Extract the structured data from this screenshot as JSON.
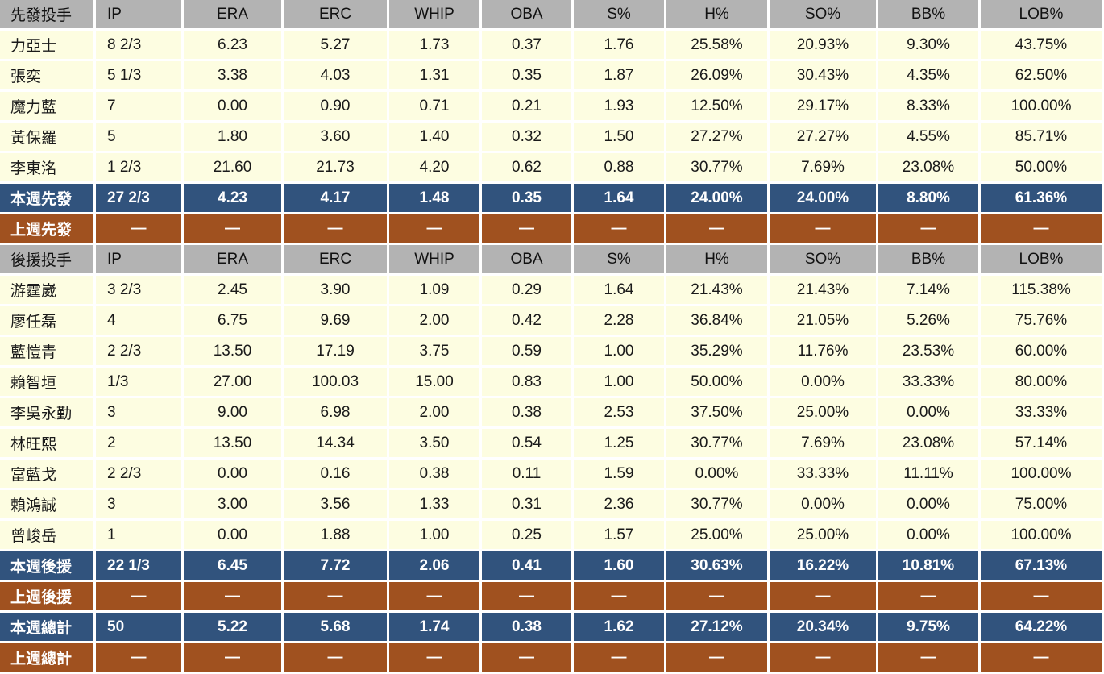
{
  "colors": {
    "header_bg": "#b3b3b3",
    "player_row_bg": "#fdfde1",
    "this_week_row_bg": "#31537d",
    "last_week_row_bg": "#a0511f",
    "grid_border": "#ffffff",
    "text": "#1a1a1a",
    "inverse_text": "#ffffff"
  },
  "chart_data": {
    "type": "table",
    "stat_columns": [
      "IP",
      "ERA",
      "ERC",
      "WHIP",
      "OBA",
      "S%",
      "H%",
      "SO%",
      "BB%",
      "LOB%"
    ],
    "rows": [
      {
        "kind": "header",
        "label": "先發投手"
      },
      {
        "kind": "player",
        "label": "力亞士",
        "values": [
          "8 2/3",
          "6.23",
          "5.27",
          "1.73",
          "0.37",
          "1.76",
          "25.58%",
          "20.93%",
          "9.30%",
          "43.75%"
        ]
      },
      {
        "kind": "player",
        "label": "張奕",
        "values": [
          "5 1/3",
          "3.38",
          "4.03",
          "1.31",
          "0.35",
          "1.87",
          "26.09%",
          "30.43%",
          "4.35%",
          "62.50%"
        ]
      },
      {
        "kind": "player",
        "label": "魔力藍",
        "values": [
          "7",
          "0.00",
          "0.90",
          "0.71",
          "0.21",
          "1.93",
          "12.50%",
          "29.17%",
          "8.33%",
          "100.00%"
        ]
      },
      {
        "kind": "player",
        "label": "黃保羅",
        "values": [
          "5",
          "1.80",
          "3.60",
          "1.40",
          "0.32",
          "1.50",
          "27.27%",
          "27.27%",
          "4.55%",
          "85.71%"
        ]
      },
      {
        "kind": "player",
        "label": "李東洺",
        "values": [
          "1 2/3",
          "21.60",
          "21.73",
          "4.20",
          "0.62",
          "0.88",
          "30.77%",
          "7.69%",
          "23.08%",
          "50.00%"
        ]
      },
      {
        "kind": "week_total",
        "label": "本週先發",
        "values": [
          "27 2/3",
          "4.23",
          "4.17",
          "1.48",
          "0.35",
          "1.64",
          "24.00%",
          "24.00%",
          "8.80%",
          "61.36%"
        ]
      },
      {
        "kind": "lastweek_total",
        "label": "上週先發",
        "values": [
          "—",
          "—",
          "—",
          "—",
          "—",
          "—",
          "—",
          "—",
          "—",
          "—"
        ]
      },
      {
        "kind": "header",
        "label": "後援投手"
      },
      {
        "kind": "player",
        "label": "游霆崴",
        "values": [
          "3 2/3",
          "2.45",
          "3.90",
          "1.09",
          "0.29",
          "1.64",
          "21.43%",
          "21.43%",
          "7.14%",
          "115.38%"
        ]
      },
      {
        "kind": "player",
        "label": "廖任磊",
        "values": [
          "4",
          "6.75",
          "9.69",
          "2.00",
          "0.42",
          "2.28",
          "36.84%",
          "21.05%",
          "5.26%",
          "75.76%"
        ]
      },
      {
        "kind": "player",
        "label": "藍愷青",
        "values": [
          "2 2/3",
          "13.50",
          "17.19",
          "3.75",
          "0.59",
          "1.00",
          "35.29%",
          "11.76%",
          "23.53%",
          "60.00%"
        ]
      },
      {
        "kind": "player",
        "label": "賴智垣",
        "values": [
          "1/3",
          "27.00",
          "100.03",
          "15.00",
          "0.83",
          "1.00",
          "50.00%",
          "0.00%",
          "33.33%",
          "80.00%"
        ]
      },
      {
        "kind": "player",
        "label": "李吳永勤",
        "values": [
          "3",
          "9.00",
          "6.98",
          "2.00",
          "0.38",
          "2.53",
          "37.50%",
          "25.00%",
          "0.00%",
          "33.33%"
        ]
      },
      {
        "kind": "player",
        "label": "林旺熙",
        "values": [
          "2",
          "13.50",
          "14.34",
          "3.50",
          "0.54",
          "1.25",
          "30.77%",
          "7.69%",
          "23.08%",
          "57.14%"
        ]
      },
      {
        "kind": "player",
        "label": "富藍戈",
        "values": [
          "2 2/3",
          "0.00",
          "0.16",
          "0.38",
          "0.11",
          "1.59",
          "0.00%",
          "33.33%",
          "11.11%",
          "100.00%"
        ]
      },
      {
        "kind": "player",
        "label": "賴鴻誠",
        "values": [
          "3",
          "3.00",
          "3.56",
          "1.33",
          "0.31",
          "2.36",
          "30.77%",
          "0.00%",
          "0.00%",
          "75.00%"
        ]
      },
      {
        "kind": "player",
        "label": "曾峻岳",
        "values": [
          "1",
          "0.00",
          "1.88",
          "1.00",
          "0.25",
          "1.57",
          "25.00%",
          "25.00%",
          "0.00%",
          "100.00%"
        ]
      },
      {
        "kind": "week_total",
        "label": "本週後援",
        "values": [
          "22 1/3",
          "6.45",
          "7.72",
          "2.06",
          "0.41",
          "1.60",
          "30.63%",
          "16.22%",
          "10.81%",
          "67.13%"
        ]
      },
      {
        "kind": "lastweek_total",
        "label": "上週後援",
        "values": [
          "—",
          "—",
          "—",
          "—",
          "—",
          "—",
          "—",
          "—",
          "—",
          "—"
        ]
      },
      {
        "kind": "week_total",
        "label": "本週總計",
        "values": [
          "50",
          "5.22",
          "5.68",
          "1.74",
          "0.38",
          "1.62",
          "27.12%",
          "20.34%",
          "9.75%",
          "64.22%"
        ]
      },
      {
        "kind": "lastweek_total",
        "label": "上週總計",
        "values": [
          "—",
          "—",
          "—",
          "—",
          "—",
          "—",
          "—",
          "—",
          "—",
          "—"
        ]
      }
    ]
  }
}
